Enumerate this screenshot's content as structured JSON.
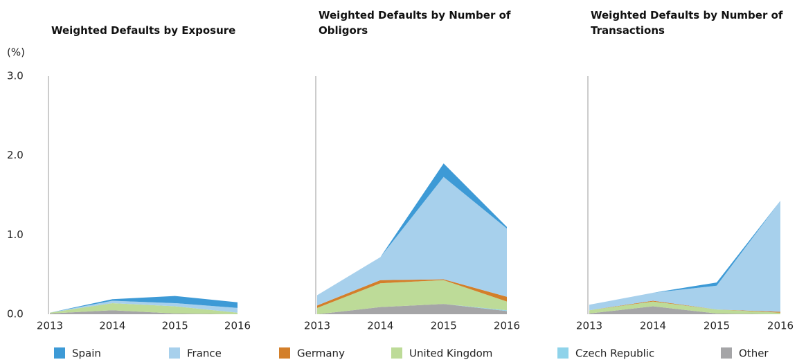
{
  "chart_data": [
    {
      "type": "area",
      "title": "Weighted Defaults by Exposure",
      "y_label": "(%)",
      "categories": [
        "2013",
        "2014",
        "2015",
        "2016"
      ],
      "ylim": [
        0,
        3
      ],
      "yticks": [
        {
          "value": 0,
          "label": "0.0"
        },
        {
          "value": 1,
          "label": "1.0"
        },
        {
          "value": 2,
          "label": "2.0"
        },
        {
          "value": 3,
          "label": "3.0"
        }
      ],
      "series": [
        {
          "name": "Spain",
          "color": "#3d9ad6",
          "values": [
            0,
            0.02,
            0.09,
            0.07
          ]
        },
        {
          "name": "France",
          "color": "#a7d0ec",
          "values": [
            0,
            0.03,
            0.04,
            0.06
          ]
        },
        {
          "name": "Germany",
          "color": "#d37f2a",
          "values": [
            0,
            0,
            0,
            0
          ]
        },
        {
          "name": "United Kingdom",
          "color": "#bddb98",
          "values": [
            0.01,
            0.09,
            0.09,
            0.02
          ]
        },
        {
          "name": "Czech Republic",
          "color": "#8fd3ea",
          "values": [
            0,
            0,
            0,
            0
          ]
        },
        {
          "name": "Other",
          "color": "#a5a5a7",
          "values": [
            0.01,
            0.05,
            0.01,
            0
          ]
        }
      ]
    },
    {
      "type": "area",
      "title": "Weighted Defaults by Number of Obligors",
      "categories": [
        "2013",
        "2014",
        "2015",
        "2016"
      ],
      "ylim": [
        0,
        3
      ],
      "series": [
        {
          "values": [
            0,
            0,
            0.17,
            0.02
          ]
        },
        {
          "values": [
            0.13,
            0.29,
            1.29,
            0.86
          ]
        },
        {
          "values": [
            0.03,
            0.04,
            0.01,
            0.06
          ]
        },
        {
          "values": [
            0.08,
            0.3,
            0.3,
            0.11
          ]
        },
        {
          "values": [
            0,
            0,
            0,
            0.01
          ]
        },
        {
          "values": [
            0,
            0.09,
            0.13,
            0.04
          ]
        }
      ]
    },
    {
      "type": "area",
      "title": "Weighted Defaults by Number of Transactions",
      "categories": [
        "2013",
        "2014",
        "2015",
        "2016"
      ],
      "ylim": [
        0,
        3
      ],
      "series": [
        {
          "values": [
            0,
            0,
            0.04,
            0
          ]
        },
        {
          "values": [
            0.07,
            0.1,
            0.3,
            1.4
          ]
        },
        {
          "values": [
            0,
            0.01,
            0,
            0.01
          ]
        },
        {
          "values": [
            0.04,
            0.06,
            0.05,
            0.02
          ]
        },
        {
          "values": [
            0,
            0,
            0,
            0
          ]
        },
        {
          "values": [
            0.01,
            0.1,
            0.01,
            0
          ]
        }
      ]
    }
  ]
}
